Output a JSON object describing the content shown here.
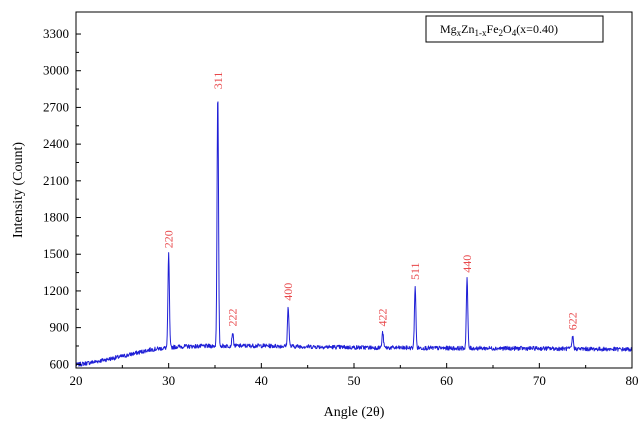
{
  "chart_data": {
    "type": "line",
    "xlabel": "Angle (2θ)",
    "ylabel": "Intensity (Count)",
    "xlim": [
      20,
      80
    ],
    "ylim": [
      570,
      3480
    ],
    "x_ticks": [
      20,
      30,
      40,
      50,
      60,
      70,
      80
    ],
    "y_ticks": [
      600,
      900,
      1200,
      1500,
      1800,
      2100,
      2400,
      2700,
      3000,
      3300
    ],
    "grid": false,
    "legend_position": "top-right",
    "series_color": "#1f1fd6",
    "label_color": "#e8474a",
    "legend": {
      "prefix": "Mg",
      "sub1": "x",
      "mid1": "Zn",
      "sub2": "1-x",
      "mid2": "Fe",
      "sub3": "2",
      "mid3": "O",
      "sub4": "4",
      "suffix": "(x=0.40)"
    },
    "peaks": [
      {
        "label": "220",
        "x": 30.0,
        "y": 1500
      },
      {
        "label": "311",
        "x": 35.3,
        "y": 2800
      },
      {
        "label": "222",
        "x": 36.9,
        "y": 860
      },
      {
        "label": "400",
        "x": 42.9,
        "y": 1070
      },
      {
        "label": "422",
        "x": 53.1,
        "y": 860
      },
      {
        "label": "511",
        "x": 56.6,
        "y": 1240
      },
      {
        "label": "440",
        "x": 62.2,
        "y": 1300
      },
      {
        "label": "622",
        "x": 73.6,
        "y": 830
      }
    ],
    "background": [
      [
        20,
        595
      ],
      [
        22,
        620
      ],
      [
        25,
        665
      ],
      [
        28,
        720
      ],
      [
        31,
        745
      ],
      [
        35,
        750
      ],
      [
        40,
        752
      ],
      [
        50,
        738
      ],
      [
        60,
        732
      ],
      [
        70,
        730
      ],
      [
        80,
        722
      ]
    ]
  }
}
